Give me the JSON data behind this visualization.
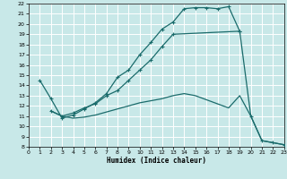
{
  "xlabel": "Humidex (Indice chaleur)",
  "bg_color": "#c8e8e8",
  "grid_color": "#ffffff",
  "line_color": "#1a6b6b",
  "xlim": [
    0,
    23
  ],
  "ylim": [
    8,
    22
  ],
  "xticks": [
    0,
    1,
    2,
    3,
    4,
    5,
    6,
    7,
    8,
    9,
    10,
    11,
    12,
    13,
    14,
    15,
    16,
    17,
    18,
    19,
    20,
    21,
    22,
    23
  ],
  "yticks": [
    8,
    9,
    10,
    11,
    12,
    13,
    14,
    15,
    16,
    17,
    18,
    19,
    20,
    21,
    22
  ],
  "curve1_x": [
    1,
    2,
    3,
    4,
    5,
    6,
    7,
    8,
    9,
    10,
    11,
    12,
    13,
    14,
    15,
    16,
    17,
    18,
    19
  ],
  "curve1_y": [
    14.5,
    12.7,
    10.8,
    11.1,
    11.7,
    12.3,
    13.2,
    14.8,
    15.5,
    17.0,
    18.2,
    19.5,
    20.2,
    21.5,
    21.6,
    21.6,
    21.5,
    21.7,
    19.3
  ],
  "curve2_x": [
    2,
    3,
    4,
    5,
    6,
    7,
    8,
    9,
    10,
    11,
    12,
    13,
    19,
    20,
    21,
    22,
    23
  ],
  "curve2_y": [
    11.5,
    11.0,
    11.3,
    11.8,
    12.2,
    13.0,
    13.5,
    14.5,
    15.5,
    16.5,
    17.8,
    19.0,
    19.3,
    11.0,
    8.6,
    8.4,
    8.2
  ],
  "curve3_x": [
    2,
    3,
    4,
    5,
    6,
    7,
    8,
    9,
    10,
    11,
    12,
    13,
    14,
    15,
    16,
    17,
    18,
    19,
    20,
    21,
    22,
    23
  ],
  "curve3_y": [
    11.5,
    11.0,
    10.8,
    10.9,
    11.1,
    11.4,
    11.7,
    12.0,
    12.3,
    12.5,
    12.7,
    13.0,
    13.2,
    13.0,
    12.6,
    12.2,
    11.8,
    13.0,
    11.0,
    8.6,
    8.4,
    8.2
  ]
}
